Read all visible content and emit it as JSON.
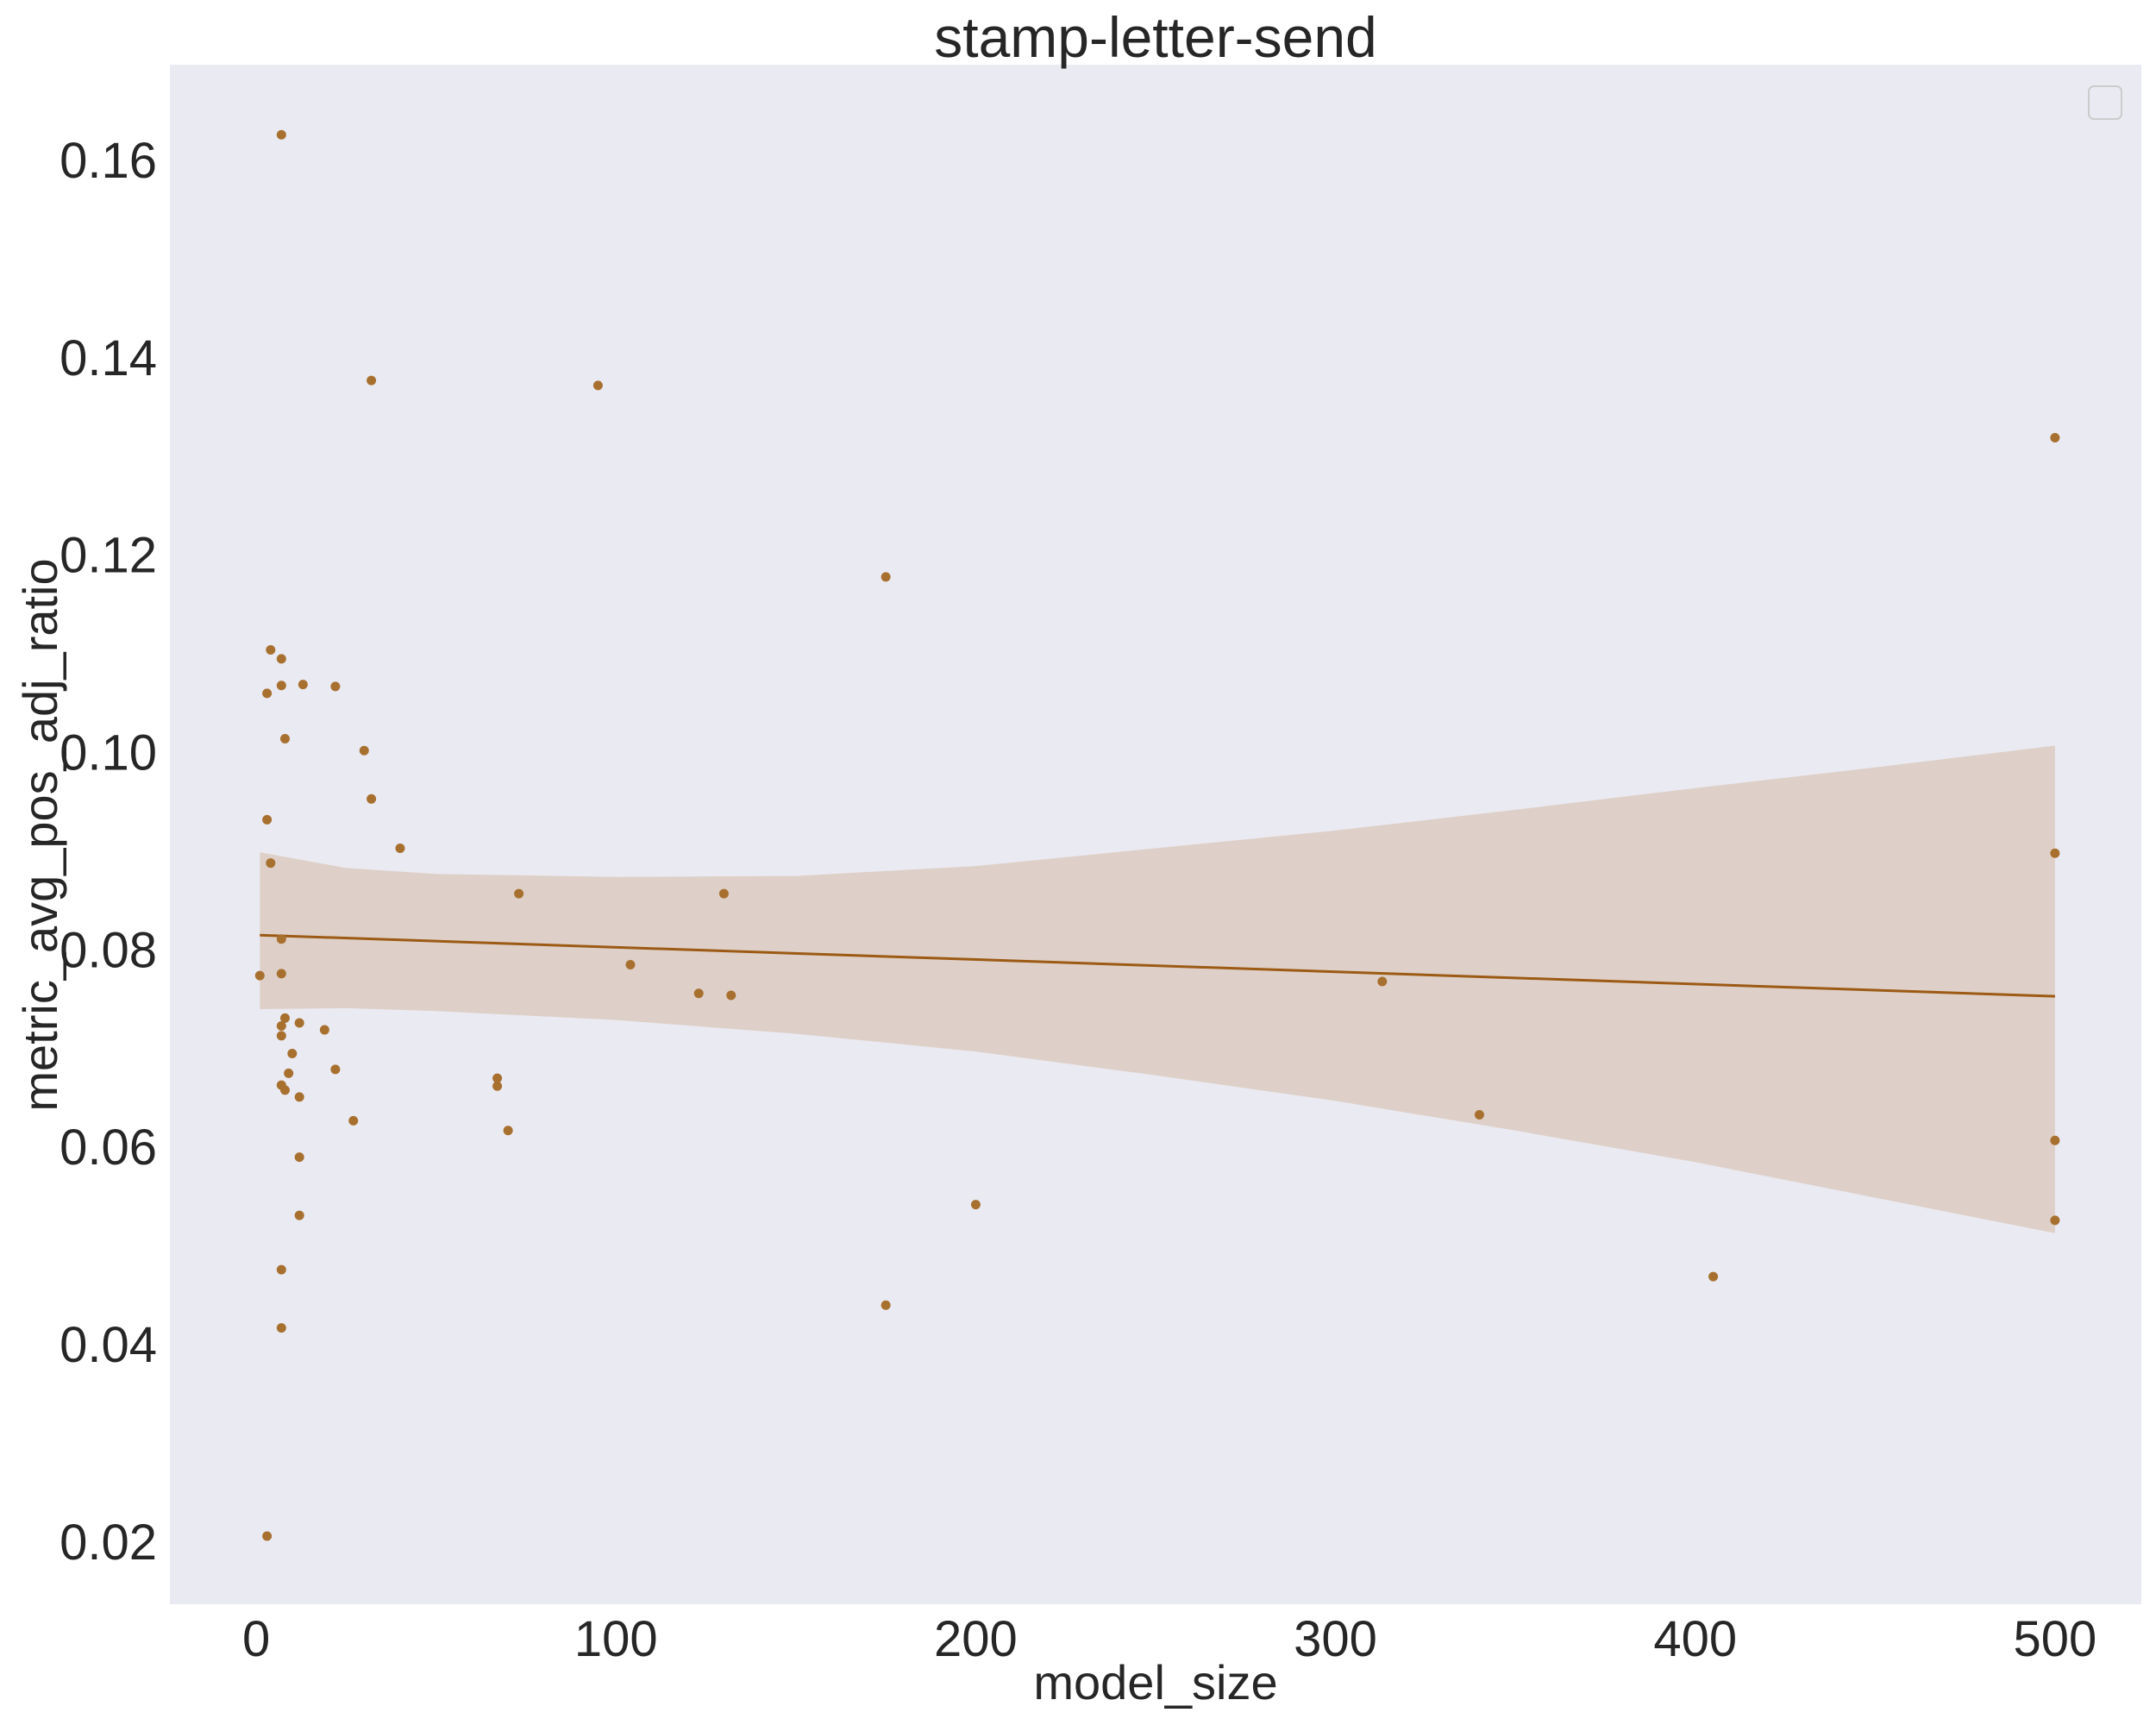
{
  "colors": {
    "plot_background": "#eaeaf2",
    "point": "#a8702f",
    "regression_line": "#9c5a14",
    "confidence_band": "#ddcfc5",
    "text": "#262626"
  },
  "chart_data": {
    "type": "scatter",
    "title": "stamp-letter-send",
    "xlabel": "model_size",
    "ylabel": "metric_avg_pos_adj_ratio",
    "xlim": [
      -24,
      524
    ],
    "ylim": [
      0.0137,
      0.1697
    ],
    "xticks": [
      0,
      100,
      200,
      300,
      400,
      500
    ],
    "xtick_labels": [
      "0",
      "100",
      "200",
      "300",
      "400",
      "500"
    ],
    "yticks": [
      0.02,
      0.04,
      0.06,
      0.08,
      0.1,
      0.12,
      0.14,
      0.16
    ],
    "ytick_labels": [
      "0.02",
      "0.04",
      "0.06",
      "0.08",
      "0.10",
      "0.12",
      "0.14",
      "0.16"
    ],
    "grid": false,
    "legend": {
      "placement": "top-right",
      "entries": []
    },
    "series": [
      {
        "kind": "points",
        "x": [
          7,
          32,
          95,
          500,
          175,
          4,
          7,
          3,
          13,
          22,
          7,
          8,
          30,
          32,
          3,
          40,
          4,
          73,
          130,
          7,
          1,
          7,
          104,
          123,
          132,
          313,
          8,
          19,
          7,
          12,
          7,
          22,
          10,
          9,
          67,
          67,
          7,
          8,
          12,
          340,
          27,
          70,
          12,
          500,
          200,
          12,
          500,
          7,
          175,
          405,
          7,
          3,
          500
        ],
        "y": [
          0.1626,
          0.1377,
          0.1372,
          0.1319,
          0.1178,
          0.1104,
          0.1095,
          0.106,
          0.1069,
          0.1067,
          0.1068,
          0.1014,
          0.1002,
          0.0953,
          0.0932,
          0.0903,
          0.0888,
          0.0857,
          0.0857,
          0.0811,
          0.0774,
          0.0776,
          0.0785,
          0.0756,
          0.0754,
          0.0768,
          0.0731,
          0.0719,
          0.0713,
          0.0726,
          0.0723,
          0.0679,
          0.0695,
          0.0675,
          0.067,
          0.0662,
          0.0663,
          0.0658,
          0.0651,
          0.0633,
          0.0627,
          0.0617,
          0.059,
          0.0607,
          0.0542,
          0.0531,
          0.0526,
          0.0476,
          0.044,
          0.0469,
          0.0417,
          0.0206,
          0.0898
        ]
      },
      {
        "kind": "regression",
        "x": [
          1,
          500
        ],
        "y": [
          0.0815,
          0.0753
        ]
      },
      {
        "kind": "confidence_band",
        "x": [
          1,
          25,
          50,
          100,
          150,
          200,
          250,
          300,
          350,
          400,
          450,
          500
        ],
        "upper": [
          0.0899,
          0.0883,
          0.0877,
          0.0874,
          0.0875,
          0.0885,
          0.0903,
          0.0921,
          0.0942,
          0.0964,
          0.0985,
          0.1007
        ],
        "lower": [
          0.074,
          0.0741,
          0.0738,
          0.0729,
          0.0715,
          0.0697,
          0.0673,
          0.0647,
          0.0617,
          0.0585,
          0.0549,
          0.0513
        ]
      }
    ]
  }
}
